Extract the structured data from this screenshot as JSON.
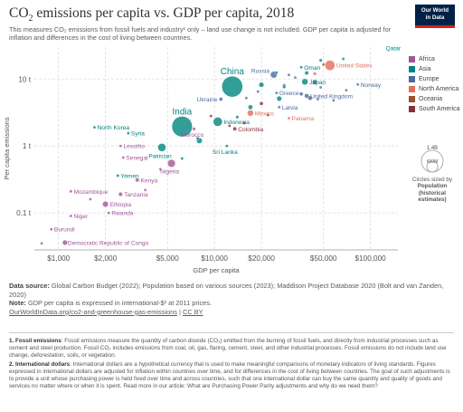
{
  "header": {
    "title_main": "CO",
    "title_sub": "2",
    "title_rest": " emissions per capita vs. GDP per capita, 2018",
    "subtitle": "This measures CO₂ emissions from fossil fuels and industry¹ only – land use change is not included. GDP per capita is adjusted for inflation and differences in the cost of living between countries.",
    "logo_line1": "Our World",
    "logo_line2": "in Data"
  },
  "legend": {
    "items": [
      {
        "label": "Africa",
        "color": "#a2559c"
      },
      {
        "label": "Asia",
        "color": "#00847e"
      },
      {
        "label": "Europe",
        "color": "#4c6a9c"
      },
      {
        "label": "North America",
        "color": "#e56e5a"
      },
      {
        "label": "Oceania",
        "color": "#9a5129"
      },
      {
        "label": "South America",
        "color": "#883039"
      }
    ],
    "size_max": "1.4B",
    "size_mid": "600M",
    "size_caption": "Circles sized by",
    "size_variable": "Population",
    "size_note": "(historical estimates)"
  },
  "chart_data": {
    "type": "scatter",
    "xlabel": "GDP per capita",
    "ylabel": "Per capita emissions",
    "x_scale": "log",
    "y_scale": "log",
    "xlim": [
      700,
      150000
    ],
    "ylim": [
      0.028,
      30
    ],
    "x_ticks": [
      {
        "value": 1000,
        "label": "$1,000"
      },
      {
        "value": 2000,
        "label": "$2,000"
      },
      {
        "value": 5000,
        "label": "$5,000"
      },
      {
        "value": 10000,
        "label": "$10,000"
      },
      {
        "value": 20000,
        "label": "$20,000"
      },
      {
        "value": 50000,
        "label": "$50,000"
      },
      {
        "value": 100000,
        "label": "$100,000"
      }
    ],
    "y_ticks": [
      {
        "value": 0.1,
        "label": "0.1 t"
      },
      {
        "value": 1,
        "label": "1 t"
      },
      {
        "value": 10,
        "label": "10 t"
      }
    ],
    "grid": true,
    "points": [
      {
        "label": "Qatar",
        "x": 140000,
        "y": 37,
        "pop": 2.8,
        "region": "Asia",
        "color": "#00847e"
      },
      {
        "label": "United States",
        "x": 55000,
        "y": 16,
        "pop": 327,
        "region": "North America",
        "color": "#e56e5a"
      },
      {
        "label": "Oman",
        "x": 36000,
        "y": 15,
        "pop": 4.8,
        "region": "Asia",
        "color": "#00847e"
      },
      {
        "label": "Russia",
        "x": 24000,
        "y": 11.6,
        "pop": 145,
        "region": "Europe",
        "color": "#4c6a9c"
      },
      {
        "label": "China",
        "x": 13000,
        "y": 7.7,
        "pop": 1400,
        "region": "Asia",
        "color": "#00847e"
      },
      {
        "label": "Japan",
        "x": 38000,
        "y": 9.1,
        "pop": 127,
        "region": "Asia",
        "color": "#00847e"
      },
      {
        "label": "Norway",
        "x": 83000,
        "y": 8.3,
        "pop": 5.3,
        "region": "Europe",
        "color": "#4c6a9c"
      },
      {
        "label": "Ukraine",
        "x": 11000,
        "y": 5.0,
        "pop": 44,
        "region": "Europe",
        "color": "#4c6a9c"
      },
      {
        "label": "Greece",
        "x": 25000,
        "y": 6.2,
        "pop": 10.5,
        "region": "Europe",
        "color": "#4c6a9c"
      },
      {
        "label": "United Kingdom",
        "x": 39000,
        "y": 5.6,
        "pop": 66,
        "region": "Europe",
        "color": "#4c6a9c"
      },
      {
        "label": "India",
        "x": 6200,
        "y": 1.95,
        "pop": 1350,
        "region": "Asia",
        "color": "#00847e"
      },
      {
        "label": "Indonesia",
        "x": 10500,
        "y": 2.3,
        "pop": 267,
        "region": "Asia",
        "color": "#00847e"
      },
      {
        "label": "Mexico",
        "x": 17000,
        "y": 3.1,
        "pop": 126,
        "region": "North America",
        "color": "#e56e5a"
      },
      {
        "label": "Latvia",
        "x": 26000,
        "y": 3.8,
        "pop": 1.9,
        "region": "Europe",
        "color": "#4c6a9c"
      },
      {
        "label": "Panama",
        "x": 30000,
        "y": 2.6,
        "pop": 4.2,
        "region": "North America",
        "color": "#e56e5a"
      },
      {
        "label": "Morocco",
        "x": 7400,
        "y": 1.8,
        "pop": 36,
        "region": "Africa",
        "color": "#a2559c"
      },
      {
        "label": "Colombia",
        "x": 13500,
        "y": 1.8,
        "pop": 49,
        "region": "South America",
        "color": "#883039"
      },
      {
        "label": "Pakistan",
        "x": 4600,
        "y": 0.95,
        "pop": 212,
        "region": "Asia",
        "color": "#00847e"
      },
      {
        "label": "Sri Lanka",
        "x": 12000,
        "y": 1.0,
        "pop": 21,
        "region": "Asia",
        "color": "#00847e"
      },
      {
        "label": "North Korea",
        "x": 1700,
        "y": 1.9,
        "pop": 25.5,
        "region": "Asia",
        "color": "#00847e"
      },
      {
        "label": "Syria",
        "x": 2800,
        "y": 1.55,
        "pop": 17,
        "region": "Asia",
        "color": "#00847e"
      },
      {
        "label": "Lesotho",
        "x": 2500,
        "y": 1.0,
        "pop": 2.1,
        "region": "Africa",
        "color": "#a2559c"
      },
      {
        "label": "Senegal",
        "x": 2600,
        "y": 0.67,
        "pop": 15.9,
        "region": "Africa",
        "color": "#a2559c"
      },
      {
        "label": "Nigeria",
        "x": 5300,
        "y": 0.55,
        "pop": 196,
        "region": "Africa",
        "color": "#a2559c"
      },
      {
        "label": "Yemen",
        "x": 2400,
        "y": 0.36,
        "pop": 28.5,
        "region": "Asia",
        "color": "#00847e"
      },
      {
        "label": "Kenya",
        "x": 3200,
        "y": 0.31,
        "pop": 51,
        "region": "Africa",
        "color": "#a2559c"
      },
      {
        "label": "Mozambique",
        "x": 1200,
        "y": 0.21,
        "pop": 29.5,
        "region": "Africa",
        "color": "#a2559c"
      },
      {
        "label": "Tanzania",
        "x": 2500,
        "y": 0.19,
        "pop": 56,
        "region": "Africa",
        "color": "#a2559c"
      },
      {
        "label": "Ethiopia",
        "x": 2000,
        "y": 0.135,
        "pop": 109,
        "region": "Africa",
        "color": "#a2559c"
      },
      {
        "label": "Rwanda",
        "x": 2100,
        "y": 0.1,
        "pop": 12.3,
        "region": "Africa",
        "color": "#a2559c"
      },
      {
        "label": "Niger",
        "x": 1200,
        "y": 0.09,
        "pop": 22.4,
        "region": "Africa",
        "color": "#a2559c"
      },
      {
        "label": "Burundi",
        "x": 900,
        "y": 0.057,
        "pop": 11.2,
        "region": "Africa",
        "color": "#a2559c"
      },
      {
        "label": "Democratic Republic of Congo",
        "x": 1100,
        "y": 0.036,
        "pop": 84,
        "region": "Africa",
        "color": "#a2559c"
      },
      {
        "label": "",
        "x": 780,
        "y": 0.035,
        "pop": 6,
        "region": "Africa",
        "color": "#a2559c"
      },
      {
        "label": "",
        "x": 1600,
        "y": 0.16,
        "pop": 20,
        "region": "Africa",
        "color": "#a2559c"
      },
      {
        "label": "",
        "x": 3600,
        "y": 0.22,
        "pop": 9,
        "region": "Africa",
        "color": "#a2559c"
      },
      {
        "label": "",
        "x": 4500,
        "y": 0.45,
        "pop": 8,
        "region": "Africa",
        "color": "#a2559c"
      },
      {
        "label": "",
        "x": 6200,
        "y": 0.65,
        "pop": 14,
        "region": "Asia",
        "color": "#00847e"
      },
      {
        "label": "",
        "x": 7800,
        "y": 1.3,
        "pop": 30,
        "region": "Asia",
        "color": "#00847e"
      },
      {
        "label": "",
        "x": 9500,
        "y": 2.8,
        "pop": 6,
        "region": "South America",
        "color": "#883039"
      },
      {
        "label": "",
        "x": 12500,
        "y": 2.0,
        "pop": 11,
        "region": "South America",
        "color": "#883039"
      },
      {
        "label": "",
        "x": 15500,
        "y": 2.2,
        "pop": 32,
        "region": "South America",
        "color": "#883039"
      },
      {
        "label": "",
        "x": 20000,
        "y": 4.3,
        "pop": 44,
        "region": "South America",
        "color": "#883039"
      },
      {
        "label": "",
        "x": 22000,
        "y": 2.9,
        "pop": 18,
        "region": "South America",
        "color": "#883039"
      },
      {
        "label": "",
        "x": 16000,
        "y": 5.2,
        "pop": 8,
        "region": "Europe",
        "color": "#4c6a9c"
      },
      {
        "label": "",
        "x": 19000,
        "y": 6.5,
        "pop": 4,
        "region": "Europe",
        "color": "#4c6a9c"
      },
      {
        "label": "",
        "x": 28000,
        "y": 8.0,
        "pop": 38,
        "region": "Europe",
        "color": "#4c6a9c"
      },
      {
        "label": "",
        "x": 33000,
        "y": 10.5,
        "pop": 11,
        "region": "Europe",
        "color": "#4c6a9c"
      },
      {
        "label": "",
        "x": 44000,
        "y": 9.0,
        "pop": 83,
        "region": "Europe",
        "color": "#4c6a9c"
      },
      {
        "label": "",
        "x": 48000,
        "y": 7.5,
        "pop": 17,
        "region": "Europe",
        "color": "#4c6a9c"
      },
      {
        "label": "",
        "x": 46000,
        "y": 5.0,
        "pop": 10,
        "region": "Europe",
        "color": "#4c6a9c"
      },
      {
        "label": "",
        "x": 41000,
        "y": 5.2,
        "pop": 67,
        "region": "Europe",
        "color": "#4c6a9c"
      },
      {
        "label": "",
        "x": 58000,
        "y": 4.8,
        "pop": 8.5,
        "region": "Europe",
        "color": "#4c6a9c"
      },
      {
        "label": "",
        "x": 70000,
        "y": 6.8,
        "pop": 4.9,
        "region": "Europe",
        "color": "#4c6a9c"
      },
      {
        "label": "",
        "x": 36000,
        "y": 6.0,
        "pop": 47,
        "region": "Europe",
        "color": "#4c6a9c"
      },
      {
        "label": "",
        "x": 30000,
        "y": 11.5,
        "pop": 1.3,
        "region": "Europe",
        "color": "#4c6a9c"
      },
      {
        "label": "",
        "x": 50000,
        "y": 16.5,
        "pop": 25,
        "region": "Oceania",
        "color": "#9a5129"
      },
      {
        "label": "",
        "x": 44000,
        "y": 12.0,
        "pop": 37,
        "region": "North America",
        "color": "#e56e5a"
      },
      {
        "label": "",
        "x": 67000,
        "y": 20,
        "pop": 9.6,
        "region": "Asia",
        "color": "#00847e"
      },
      {
        "label": "",
        "x": 48000,
        "y": 19,
        "pop": 33,
        "region": "Asia",
        "color": "#00847e"
      },
      {
        "label": "",
        "x": 25000,
        "y": 12.5,
        "pop": 18,
        "region": "Asia",
        "color": "#00847e"
      },
      {
        "label": "",
        "x": 20000,
        "y": 8.2,
        "pop": 82,
        "region": "Asia",
        "color": "#00847e"
      },
      {
        "label": "",
        "x": 28000,
        "y": 7.6,
        "pop": 32,
        "region": "Asia",
        "color": "#00847e"
      },
      {
        "label": "",
        "x": 39000,
        "y": 12.3,
        "pop": 51,
        "region": "Asia",
        "color": "#00847e"
      },
      {
        "label": "",
        "x": 17000,
        "y": 3.8,
        "pop": 69,
        "region": "Asia",
        "color": "#00847e"
      },
      {
        "label": "",
        "x": 26000,
        "y": 5.1,
        "pop": 82,
        "region": "Asia",
        "color": "#00847e"
      },
      {
        "label": "",
        "x": 8000,
        "y": 1.2,
        "pop": 106,
        "region": "Asia",
        "color": "#00847e"
      },
      {
        "label": "",
        "x": 14000,
        "y": 2.7,
        "pop": 33,
        "region": "Asia",
        "color": "#00847e"
      }
    ]
  },
  "footer": {
    "source_label": "Data source:",
    "source_text": " Global Carbon Budget (2022); Population based on various sources (2023); Maddison Project Database 2020 (Bolt and van Zanden, 2020)",
    "note_label": "Note:",
    "note_text": " GDP per capita is expressed in international-$² at 2011 prices.",
    "link": "OurWorldInData.org/co2-and-greenhouse-gas-emissions",
    "separator": " | ",
    "license": "CC BY"
  },
  "notes": {
    "n1_label": "1. Fossil emissions",
    "n1_text": ": Fossil emissions measure the quantity of carbon dioxide (CO₂) emitted from the burning of fossil fuels, and directly from industrial processes such as cement and steel production. Fossil CO₂ includes emissions from coal, oil, gas, flaring, cement, steel, and other industrial processes. Fossil emissions do not include land use change, deforestation, soils, or vegetation.",
    "n2_label": "2. International dollars",
    "n2_text": ": International dollars are a hypothetical currency that is used to make meaningful comparisons of monetary indicators of living standards. Figures expressed in international dollars are adjusted for inflation within countries over time, and for differences in the cost of living between countries. The goal of such adjustments is to provide a unit whose purchasing power is held fixed over time and across countries, such that one international dollar can buy the same quantity and quality of goods and services no matter where or when it is spent. Read more in our article: What are Purchasing Power Parity adjustments and why do we need them?"
  }
}
